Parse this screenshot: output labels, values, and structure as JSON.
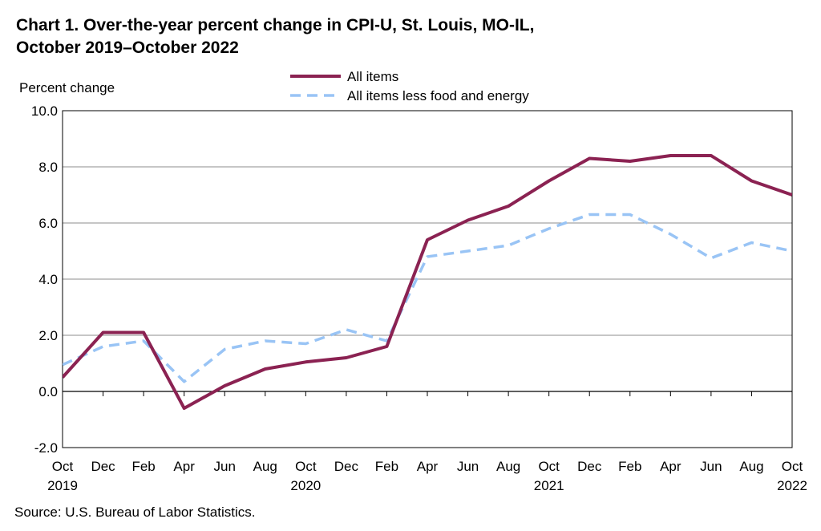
{
  "title_line1": "Chart 1. Over-the-year percent change in CPI-U, St. Louis, MO-IL,",
  "title_line2": "October 2019–October 2022",
  "source": "Source: U.S. Bureau of Labor Statistics.",
  "chart_data": {
    "type": "line",
    "ylabel": "Percent change",
    "xlabel": "",
    "ylim": [
      -2.0,
      10.0
    ],
    "yticks": [
      "-2.0",
      "0.0",
      "2.0",
      "4.0",
      "6.0",
      "8.0",
      "10.0"
    ],
    "categories": [
      "Oct 2019",
      "Dec 2019",
      "Feb 2020",
      "Apr 2020",
      "Jun 2020",
      "Aug 2020",
      "Oct 2020",
      "Dec 2020",
      "Feb 2021",
      "Apr 2021",
      "Jun 2021",
      "Aug 2021",
      "Oct 2021",
      "Dec 2021",
      "Feb 2022",
      "Apr 2022",
      "Jun 2022",
      "Aug 2022",
      "Oct 2022"
    ],
    "month_labels": [
      "Oct",
      "Dec",
      "Feb",
      "Apr",
      "Jun",
      "Aug",
      "Oct",
      "Dec",
      "Feb",
      "Apr",
      "Jun",
      "Aug",
      "Oct",
      "Dec",
      "Feb",
      "Apr",
      "Jun",
      "Aug",
      "Oct"
    ],
    "year_labels": [
      "2019",
      "",
      "",
      "",
      "",
      "",
      "2020",
      "",
      "",
      "",
      "",
      "",
      "2021",
      "",
      "",
      "",
      "",
      "",
      "2022"
    ],
    "grid": true,
    "legend_position": "top-center",
    "series": [
      {
        "name": "All items",
        "color": "#8b2252",
        "style": "solid",
        "values": [
          0.5,
          2.1,
          2.1,
          -0.6,
          0.2,
          0.8,
          1.05,
          1.2,
          1.6,
          5.4,
          6.1,
          6.6,
          7.5,
          8.3,
          8.2,
          8.4,
          8.4,
          7.5,
          7.0
        ]
      },
      {
        "name": "All items less food and energy",
        "color": "#99c4f5",
        "style": "dashed",
        "values": [
          0.95,
          1.6,
          1.8,
          0.35,
          1.5,
          1.8,
          1.7,
          2.2,
          1.8,
          4.8,
          5.0,
          5.2,
          5.8,
          6.3,
          6.3,
          5.6,
          4.75,
          5.3,
          5.0
        ]
      }
    ]
  }
}
